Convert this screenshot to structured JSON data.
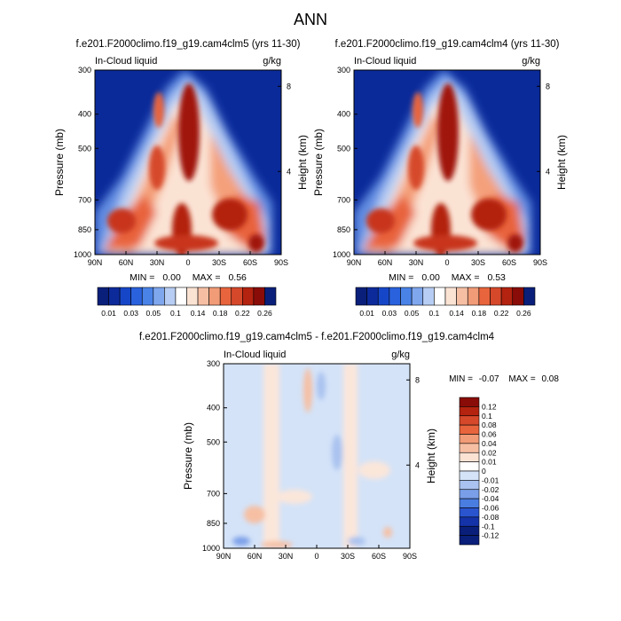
{
  "figure": {
    "main_title": "ANN"
  },
  "chart_data": [
    {
      "type": "heatmap",
      "title": "f.e201.F2000climo.f19_g19.cam4clm5 (yrs 11-30)",
      "left_label": "In-Cloud liquid",
      "units": "g/kg",
      "ylabel": "Pressure (mb)",
      "ylabel_right": "Height (km)",
      "x_ticks": [
        "90N",
        "60N",
        "30N",
        "0",
        "30S",
        "60S",
        "90S"
      ],
      "y_ticks": [
        "300",
        "400",
        "500",
        "700",
        "850",
        "1000"
      ],
      "height_ticks": [
        "8",
        "4"
      ],
      "xlim": [
        90,
        -90
      ],
      "ylim_mb": [
        300,
        1000
      ],
      "min_label": "MIN =",
      "min_value": "0.00",
      "max_label": "MAX =",
      "max_value": "0.56",
      "colorbar_levels": [
        0.01,
        0.02,
        0.03,
        0.04,
        0.05,
        0.07,
        0.1,
        0.12,
        0.14,
        0.16,
        0.18,
        0.2,
        0.22,
        0.24,
        0.26
      ],
      "colorbar_labels": [
        "0.01",
        "0.03",
        "0.05",
        "0.1",
        "0.14",
        "0.18",
        "0.22",
        "0.26"
      ]
    },
    {
      "type": "heatmap",
      "title": "f.e201.F2000climo.f19_g19.cam4clm4 (yrs 11-30)",
      "left_label": "In-Cloud liquid",
      "units": "g/kg",
      "ylabel": "Pressure (mb)",
      "ylabel_right": "Height (km)",
      "x_ticks": [
        "90N",
        "60N",
        "30N",
        "0",
        "30S",
        "60S",
        "90S"
      ],
      "y_ticks": [
        "300",
        "400",
        "500",
        "700",
        "850",
        "1000"
      ],
      "height_ticks": [
        "8",
        "4"
      ],
      "xlim": [
        90,
        -90
      ],
      "ylim_mb": [
        300,
        1000
      ],
      "min_label": "MIN =",
      "min_value": "0.00",
      "max_label": "MAX =",
      "max_value": "0.53",
      "colorbar_levels": [
        0.01,
        0.02,
        0.03,
        0.04,
        0.05,
        0.07,
        0.1,
        0.12,
        0.14,
        0.16,
        0.18,
        0.2,
        0.22,
        0.24,
        0.26
      ],
      "colorbar_labels": [
        "0.01",
        "0.03",
        "0.05",
        "0.1",
        "0.14",
        "0.18",
        "0.22",
        "0.26"
      ]
    },
    {
      "type": "heatmap",
      "title": "f.e201.F2000climo.f19_g19.cam4clm5 - f.e201.F2000climo.f19_g19.cam4clm4",
      "left_label": "In-Cloud liquid",
      "units": "g/kg",
      "ylabel": "Pressure (mb)",
      "ylabel_right": "Height (km)",
      "x_ticks": [
        "90N",
        "60N",
        "30N",
        "0",
        "30S",
        "60S",
        "90S"
      ],
      "y_ticks": [
        "300",
        "400",
        "500",
        "700",
        "850",
        "1000"
      ],
      "height_ticks": [
        "8",
        "4"
      ],
      "xlim": [
        90,
        -90
      ],
      "ylim_mb": [
        300,
        1000
      ],
      "min_label": "MIN =",
      "min_value": "-0.07",
      "max_label": "MAX =",
      "max_value": "0.08",
      "colorbar_levels": [
        0.12,
        0.1,
        0.08,
        0.06,
        0.04,
        0.02,
        0.01,
        0,
        -0.01,
        -0.02,
        -0.04,
        -0.06,
        -0.08,
        -0.1,
        -0.12
      ],
      "colorbar_labels": [
        "0.12",
        "0.1",
        "0.08",
        "0.06",
        "0.04",
        "0.02",
        "0.01",
        "0",
        "-0.01",
        "-0.02",
        "-0.04",
        "-0.06",
        "-0.08",
        "-0.1",
        "-0.12"
      ]
    }
  ]
}
